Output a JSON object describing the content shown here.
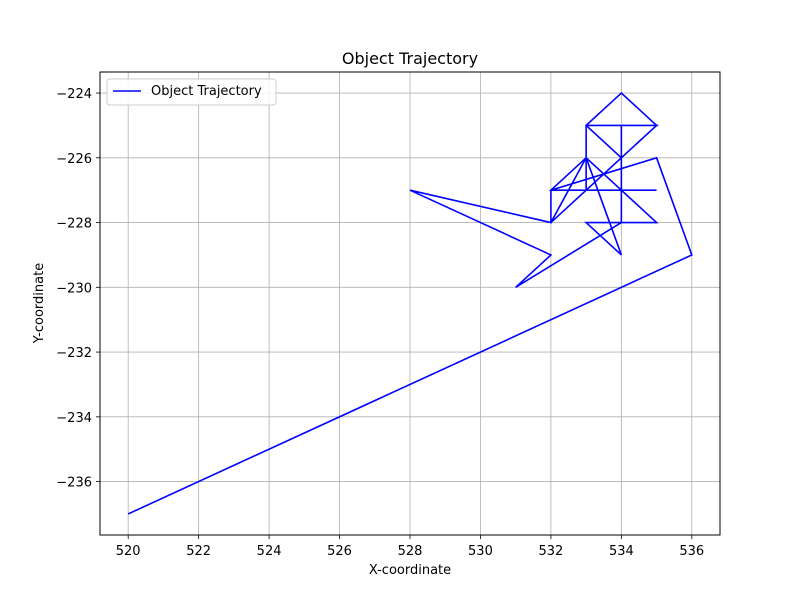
{
  "chart_data": {
    "type": "line",
    "title": "Object Trajectory",
    "xlabel": "X-coordinate",
    "ylabel": "Y-coordinate",
    "xlim": [
      519.2,
      536.8
    ],
    "ylim": [
      -237.65,
      -223.35
    ],
    "xticks": [
      520,
      522,
      524,
      526,
      528,
      530,
      532,
      534,
      536
    ],
    "yticks": [
      -224,
      -226,
      -228,
      -230,
      -232,
      -234,
      -236
    ],
    "grid": true,
    "legend_position": "upper-left",
    "series": [
      {
        "name": "Object Trajectory",
        "color": "#0000ff",
        "points": [
          [
            520,
            -237
          ],
          [
            536,
            -229
          ],
          [
            535,
            -226
          ],
          [
            532,
            -227
          ],
          [
            532,
            -228
          ],
          [
            528,
            -227
          ],
          [
            532,
            -229
          ],
          [
            531,
            -230
          ],
          [
            534,
            -228
          ],
          [
            533,
            -228
          ],
          [
            534,
            -229
          ],
          [
            533,
            -226
          ],
          [
            533,
            -225
          ],
          [
            535,
            -225
          ],
          [
            534,
            -224
          ],
          [
            533,
            -225
          ],
          [
            534,
            -226
          ],
          [
            534,
            -225
          ],
          [
            534,
            -227
          ],
          [
            535,
            -228
          ],
          [
            534,
            -228
          ],
          [
            534,
            -226
          ],
          [
            532,
            -228
          ],
          [
            533,
            -226
          ],
          [
            534,
            -227
          ],
          [
            534,
            -225
          ],
          [
            535,
            -225
          ],
          [
            533,
            -227
          ],
          [
            533,
            -226
          ],
          [
            532,
            -227
          ],
          [
            535,
            -227
          ]
        ]
      }
    ]
  }
}
